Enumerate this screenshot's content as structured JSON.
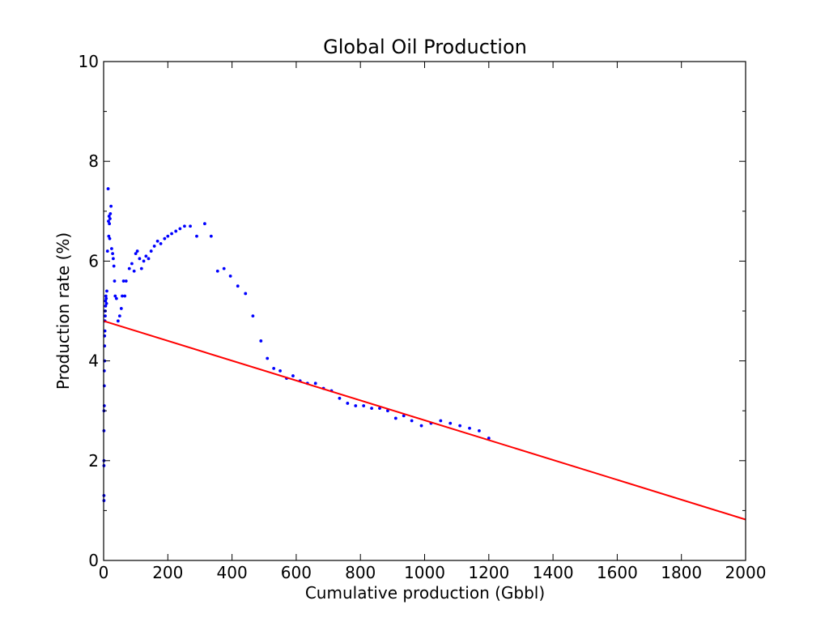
{
  "chart_data": {
    "type": "scatter",
    "title": "Global Oil Production",
    "xlabel": "Cumulative production (Gbbl)",
    "ylabel": "Production rate (%)",
    "xlim": [
      0,
      2000
    ],
    "ylim": [
      0,
      10
    ],
    "grid": false,
    "x_ticks": [
      "0",
      "200",
      "400",
      "600",
      "800",
      "1000",
      "1200",
      "1400",
      "1600",
      "1800",
      "2000"
    ],
    "y_ticks": [
      "0",
      "2",
      "4",
      "6",
      "8",
      "10"
    ],
    "series": [
      {
        "type": "scatter",
        "color": "#0000ff",
        "points": [
          [
            1,
            1.2
          ],
          [
            1,
            1.3
          ],
          [
            1,
            1.9
          ],
          [
            1,
            2.0
          ],
          [
            1,
            2.6
          ],
          [
            1,
            3.0
          ],
          [
            2,
            3.1
          ],
          [
            2,
            3.5
          ],
          [
            2,
            3.8
          ],
          [
            3,
            4.0
          ],
          [
            3,
            4.3
          ],
          [
            3,
            4.5
          ],
          [
            4,
            4.6
          ],
          [
            4,
            4.8
          ],
          [
            5,
            4.9
          ],
          [
            5,
            5.0
          ],
          [
            6,
            5.1
          ],
          [
            6,
            5.2
          ],
          [
            7,
            5.3
          ],
          [
            8,
            5.25
          ],
          [
            9,
            5.15
          ],
          [
            10,
            5.4
          ],
          [
            12,
            6.2
          ],
          [
            14,
            7.45
          ],
          [
            15,
            6.8
          ],
          [
            16,
            6.5
          ],
          [
            17,
            6.9
          ],
          [
            18,
            6.75
          ],
          [
            19,
            6.45
          ],
          [
            20,
            6.85
          ],
          [
            21,
            6.95
          ],
          [
            23,
            7.1
          ],
          [
            25,
            6.25
          ],
          [
            28,
            6.15
          ],
          [
            30,
            6.05
          ],
          [
            32,
            5.9
          ],
          [
            34,
            5.6
          ],
          [
            36,
            5.3
          ],
          [
            40,
            5.25
          ],
          [
            45,
            4.8
          ],
          [
            50,
            4.9
          ],
          [
            55,
            5.05
          ],
          [
            58,
            5.3
          ],
          [
            62,
            5.6
          ],
          [
            66,
            5.3
          ],
          [
            70,
            5.6
          ],
          [
            80,
            5.85
          ],
          [
            88,
            5.95
          ],
          [
            95,
            5.8
          ],
          [
            100,
            6.15
          ],
          [
            105,
            6.2
          ],
          [
            112,
            6.05
          ],
          [
            118,
            5.85
          ],
          [
            125,
            6.0
          ],
          [
            132,
            6.1
          ],
          [
            140,
            6.05
          ],
          [
            148,
            6.2
          ],
          [
            158,
            6.3
          ],
          [
            168,
            6.4
          ],
          [
            178,
            6.35
          ],
          [
            190,
            6.45
          ],
          [
            200,
            6.5
          ],
          [
            212,
            6.55
          ],
          [
            225,
            6.6
          ],
          [
            238,
            6.65
          ],
          [
            252,
            6.7
          ],
          [
            270,
            6.7
          ],
          [
            290,
            6.5
          ],
          [
            315,
            6.75
          ],
          [
            335,
            6.5
          ],
          [
            355,
            5.8
          ],
          [
            375,
            5.85
          ],
          [
            395,
            5.7
          ],
          [
            418,
            5.5
          ],
          [
            442,
            5.35
          ],
          [
            465,
            4.9
          ],
          [
            490,
            4.4
          ],
          [
            510,
            4.05
          ],
          [
            530,
            3.85
          ],
          [
            550,
            3.8
          ],
          [
            570,
            3.65
          ],
          [
            590,
            3.7
          ],
          [
            612,
            3.6
          ],
          [
            635,
            3.55
          ],
          [
            660,
            3.55
          ],
          [
            685,
            3.45
          ],
          [
            710,
            3.4
          ],
          [
            735,
            3.25
          ],
          [
            760,
            3.15
          ],
          [
            785,
            3.1
          ],
          [
            810,
            3.1
          ],
          [
            835,
            3.05
          ],
          [
            860,
            3.05
          ],
          [
            885,
            3.0
          ],
          [
            910,
            2.85
          ],
          [
            935,
            2.9
          ],
          [
            960,
            2.8
          ],
          [
            990,
            2.7
          ],
          [
            1020,
            2.75
          ],
          [
            1050,
            2.8
          ],
          [
            1080,
            2.75
          ],
          [
            1110,
            2.7
          ],
          [
            1140,
            2.65
          ],
          [
            1170,
            2.6
          ],
          [
            1200,
            2.45
          ]
        ]
      },
      {
        "type": "line",
        "color": "#ff0000",
        "x": [
          0,
          2000
        ],
        "y": [
          4.8,
          0.82
        ]
      }
    ]
  }
}
